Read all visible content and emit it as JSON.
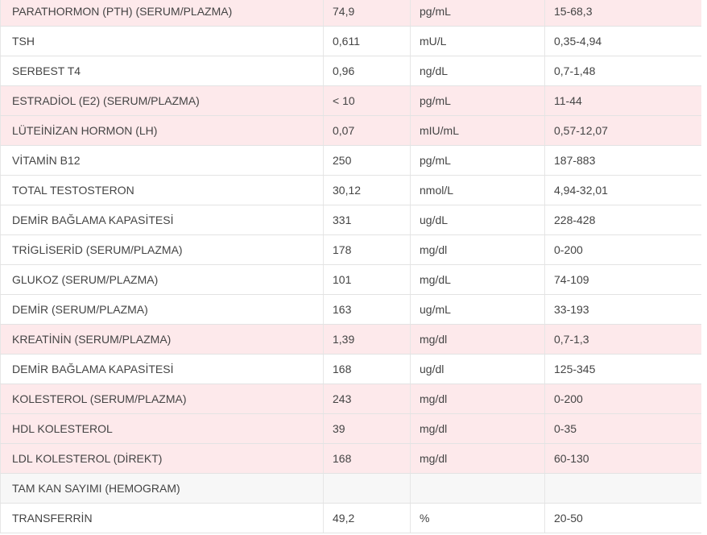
{
  "colors": {
    "high_row_background": "#fde9eb",
    "section_row_background": "#f7f7f7",
    "normal_row_background": "#ffffff"
  },
  "rows": [
    {
      "test": "PARATHORMON (PTH) (SERUM/PLAZMA)",
      "result": "74,9",
      "unit": "pg/mL",
      "range": "15-68,3",
      "status": "high"
    },
    {
      "test": "TSH",
      "result": "0,611",
      "unit": "mU/L",
      "range": "0,35-4,94",
      "status": "normal"
    },
    {
      "test": "SERBEST T4",
      "result": "0,96",
      "unit": "ng/dL",
      "range": "0,7-1,48",
      "status": "normal"
    },
    {
      "test": "ESTRADİOL (E2) (SERUM/PLAZMA)",
      "result": "< 10",
      "unit": "pg/mL",
      "range": "11-44",
      "status": "high"
    },
    {
      "test": "LÜTEİNİZAN HORMON (LH)",
      "result": "0,07",
      "unit": "mIU/mL",
      "range": "0,57-12,07",
      "status": "high"
    },
    {
      "test": "VİTAMİN B12",
      "result": "250",
      "unit": "pg/mL",
      "range": "187-883",
      "status": "normal"
    },
    {
      "test": "TOTAL TESTOSTERON",
      "result": "30,12",
      "unit": "nmol/L",
      "range": "4,94-32,01",
      "status": "normal"
    },
    {
      "test": "DEMİR BAĞLAMA KAPASİTESİ",
      "result": "331",
      "unit": "ug/dL",
      "range": "228-428",
      "status": "normal"
    },
    {
      "test": "TRİGLİSERİD (SERUM/PLAZMA)",
      "result": "178",
      "unit": "mg/dl",
      "range": "0-200",
      "status": "normal"
    },
    {
      "test": "GLUKOZ (SERUM/PLAZMA)",
      "result": "101",
      "unit": "mg/dL",
      "range": "74-109",
      "status": "normal"
    },
    {
      "test": "DEMİR (SERUM/PLAZMA)",
      "result": "163",
      "unit": "ug/mL",
      "range": "33-193",
      "status": "normal"
    },
    {
      "test": "KREATİNİN (SERUM/PLAZMA)",
      "result": "1,39",
      "unit": "mg/dl",
      "range": "0,7-1,3",
      "status": "high"
    },
    {
      "test": "DEMİR BAĞLAMA KAPASİTESİ",
      "result": "168",
      "unit": "ug/dl",
      "range": "125-345",
      "status": "normal"
    },
    {
      "test": "KOLESTEROL (SERUM/PLAZMA)",
      "result": "243",
      "unit": "mg/dl",
      "range": "0-200",
      "status": "high"
    },
    {
      "test": "HDL KOLESTEROL",
      "result": "39",
      "unit": "mg/dl",
      "range": "0-35",
      "status": "high"
    },
    {
      "test": "LDL KOLESTEROL (DİREKT)",
      "result": "168",
      "unit": "mg/dl",
      "range": "60-130",
      "status": "high"
    },
    {
      "test": "TAM KAN SAYIMI (HEMOGRAM)",
      "result": "",
      "unit": "",
      "range": "",
      "status": "header"
    },
    {
      "test": "TRANSFERRİN",
      "result": "49,2",
      "unit": "%",
      "range": "20-50",
      "status": "normal"
    }
  ]
}
